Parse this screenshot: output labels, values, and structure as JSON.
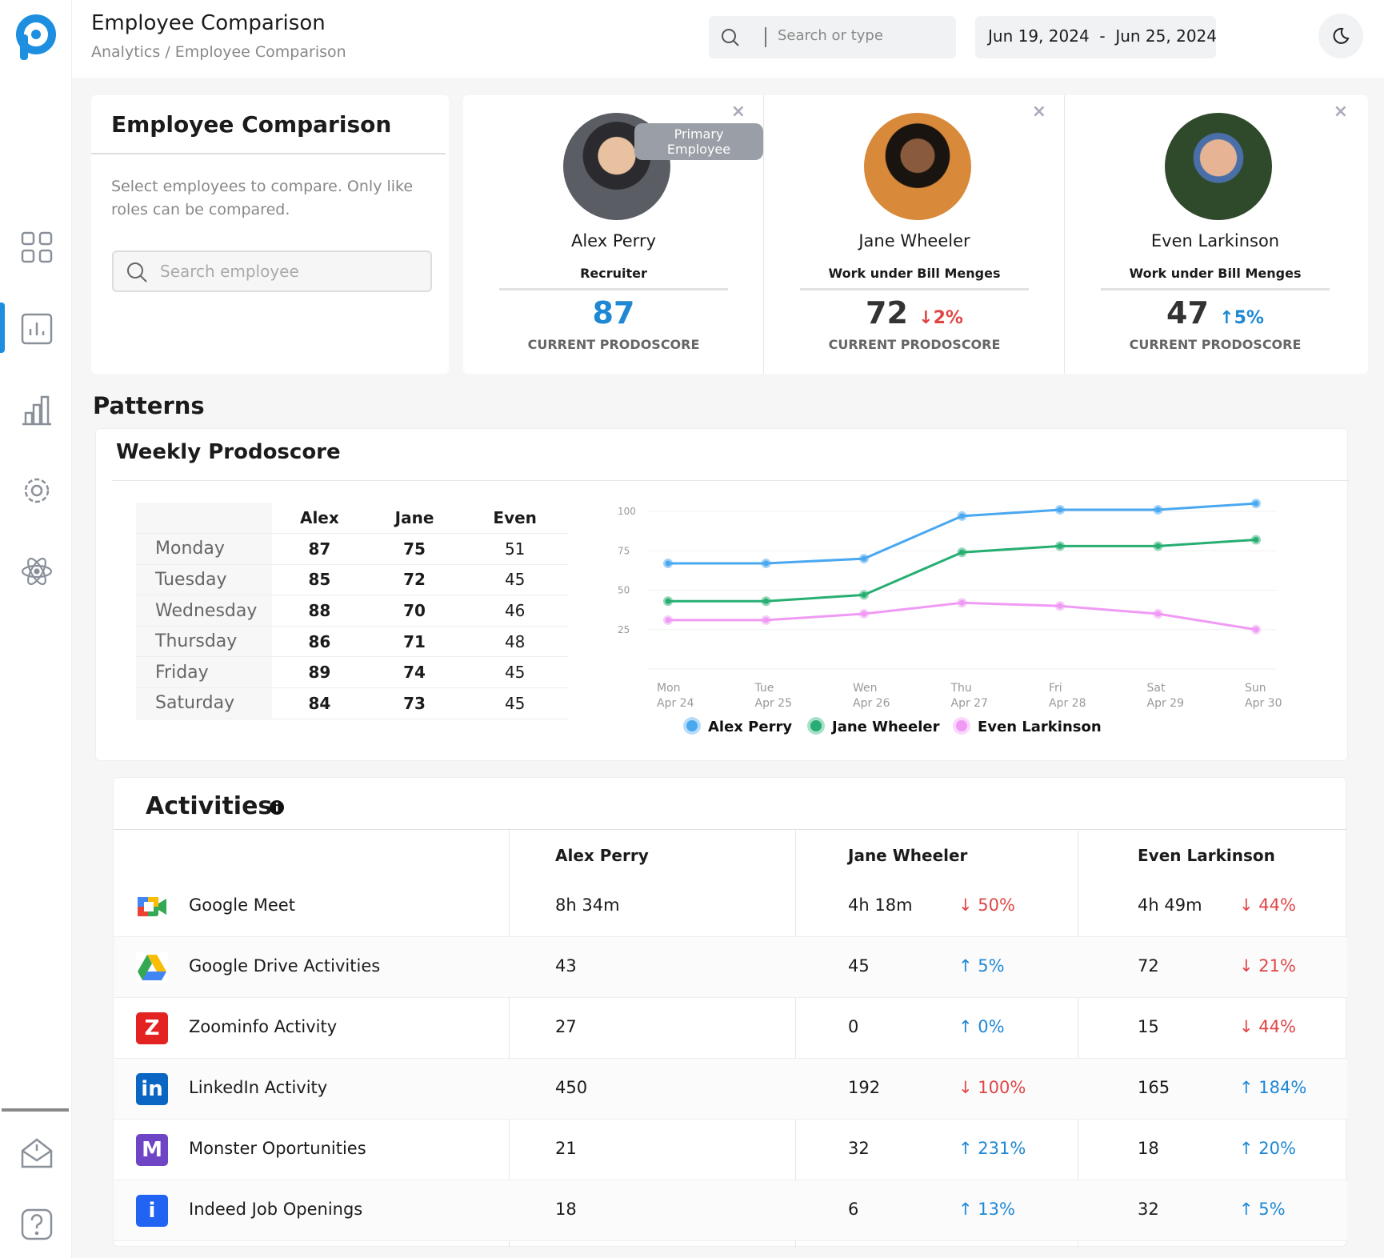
{
  "header": {
    "title": "Employee Comparison",
    "breadcrumb": "Analytics / Employee Comparison",
    "search_placeholder": "Search or type",
    "date_range": "Jun 19, 2024  -  Jun 25, 2024"
  },
  "left_panel": {
    "title": "Employee Comparison",
    "description": "Select employees to compare. Only like roles can be compared.",
    "search_placeholder": "Search employee"
  },
  "employees": [
    {
      "name": "Alex Perry",
      "role": "Recruiter",
      "score": "87",
      "change": "",
      "badge": "Primary Employee",
      "score_label": "CURRENT PRODOSCORE"
    },
    {
      "name": "Jane Wheeler",
      "role": "Work under Bill Menges",
      "score": "72",
      "change": "↓2%",
      "score_label": "CURRENT PRODOSCORE"
    },
    {
      "name": "Even Larkinson",
      "role": "Work under Bill Menges",
      "score": "47",
      "change": "↑5%",
      "score_label": "CURRENT PRODOSCORE"
    }
  ],
  "patterns": {
    "title": "Patterns",
    "card_title": "Weekly Prodoscore",
    "table": {
      "headers": [
        "Alex",
        "Jane",
        "Even"
      ],
      "rows": [
        {
          "day": "Monday",
          "values": [
            "87",
            "75",
            "51"
          ]
        },
        {
          "day": "Tuesday",
          "values": [
            "85",
            "72",
            "45"
          ]
        },
        {
          "day": "Wednesday",
          "values": [
            "88",
            "70",
            "46"
          ]
        },
        {
          "day": "Thursday",
          "values": [
            "86",
            "71",
            "48"
          ]
        },
        {
          "day": "Friday",
          "values": [
            "89",
            "74",
            "45"
          ]
        },
        {
          "day": "Saturday",
          "values": [
            "84",
            "73",
            "45"
          ]
        }
      ]
    }
  },
  "chart_data": {
    "type": "line",
    "title": "Weekly Prodoscore",
    "x": [
      "Mon Apr 24",
      "Tue Apr 25",
      "Wen Apr 26",
      "Thu Apr 27",
      "Fri Apr 28",
      "Sat Apr 29",
      "Sun Apr 30"
    ],
    "x_day": [
      "Mon",
      "Tue",
      "Wen",
      "Thu",
      "Fri",
      "Sat",
      "Sun"
    ],
    "x_date": [
      "Apr 24",
      "Apr 25",
      "Apr 26",
      "Apr 27",
      "Apr 28",
      "Apr 29",
      "Apr 30"
    ],
    "yticks": [
      "25",
      "50",
      "75",
      "100"
    ],
    "ylim": [
      0,
      110
    ],
    "grid": true,
    "legend": "bottom",
    "series": [
      {
        "name": "Alex Perry",
        "color": "#4aa8f0",
        "values": [
          67,
          67,
          70,
          97,
          101,
          101,
          105
        ]
      },
      {
        "name": "Jane Wheeler",
        "color": "#27ae72",
        "values": [
          43,
          43,
          47,
          74,
          78,
          78,
          82
        ]
      },
      {
        "name": "Even Larkinson",
        "color": "#f09af5",
        "values": [
          31,
          31,
          35,
          42,
          40,
          35,
          25
        ]
      }
    ]
  },
  "activities": {
    "title": "Activities",
    "columns": [
      "Alex Perry",
      "Jane Wheeler",
      "Even Larkinson"
    ],
    "rows": [
      {
        "app": "Google Meet",
        "alex": "8h 34m",
        "jane": "4h 18m",
        "jane_change": "↓ 50%",
        "even": "4h 49m",
        "even_change": "↓ 44%"
      },
      {
        "app": "Google Drive Activities",
        "alex": "43",
        "jane": "45",
        "jane_change": "↑ 5%",
        "even": "72",
        "even_change": "↓ 21%"
      },
      {
        "app": "Zoominfo Activity",
        "alex": "27",
        "jane": "0",
        "jane_change": "↑ 0%",
        "even": "15",
        "even_change": "↓ 44%"
      },
      {
        "app": "LinkedIn Activity",
        "alex": "450",
        "jane": "192",
        "jane_change": "↓ 100%",
        "even": "165",
        "even_change": "↑ 184%"
      },
      {
        "app": "Monster Oportunities",
        "alex": "21",
        "jane": "32",
        "jane_change": "↑ 231%",
        "even": "18",
        "even_change": "↑ 20%"
      },
      {
        "app": "Indeed Job Openings",
        "alex": "18",
        "jane": "6",
        "jane_change": "↑ 13%",
        "even": "32",
        "even_change": "↑ 5%"
      }
    ]
  }
}
